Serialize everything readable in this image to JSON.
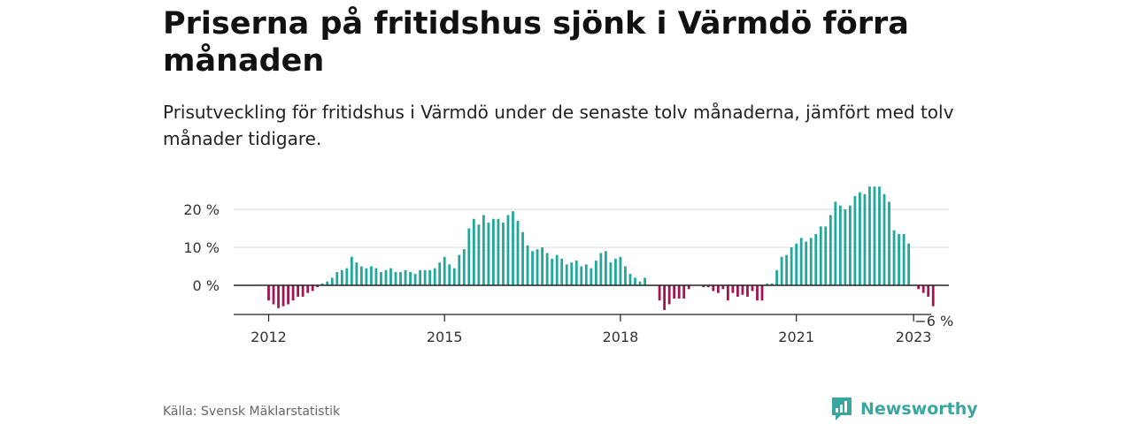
{
  "header": {
    "title": "Priserna på fritidshus sjönk i Värmdö förra månaden",
    "subtitle": "Prisutveckling för fritidshus i Värmdö under de senaste tolv månaderna, jämfört med tolv månader tidigare."
  },
  "footer": {
    "source": "Källa: Svensk Mäklarstatistik",
    "brand": "Newsworthy",
    "brand_icon": "newsworthy-logo-icon"
  },
  "colors": {
    "positive": "#22a89b",
    "negative": "#a3154f",
    "grid": "#d9d9d9",
    "axis": "#222222"
  },
  "chart_data": {
    "type": "bar",
    "x_start": "2012-01",
    "y_unit": "%",
    "ylim": [
      -6,
      26
    ],
    "y_ticks": [
      {
        "value": 0,
        "label": "0 %"
      },
      {
        "value": 10,
        "label": "10 %"
      },
      {
        "value": 20,
        "label": "20 %"
      }
    ],
    "x_ticks": [
      {
        "date": "2012-01",
        "label": "2012"
      },
      {
        "date": "2015-01",
        "label": "2015"
      },
      {
        "date": "2018-01",
        "label": "2018"
      },
      {
        "date": "2021-01",
        "label": "2021"
      },
      {
        "date": "2023-01",
        "label": "2023"
      }
    ],
    "last_label": "−6 %",
    "grid": true,
    "values": [
      -4,
      -5,
      -6,
      -5.5,
      -5,
      -4,
      -3,
      -3,
      -2,
      -1.5,
      -0.5,
      0.5,
      1,
      2,
      3.5,
      4,
      4.5,
      7.5,
      6,
      5,
      4.5,
      5,
      4.5,
      3.5,
      4,
      4.5,
      3.5,
      3.5,
      4,
      3.5,
      3,
      4,
      4,
      4,
      4.5,
      6,
      7.5,
      5.5,
      4.5,
      8,
      9.5,
      15,
      17.5,
      16,
      18.5,
      16.5,
      17.5,
      17.5,
      16.5,
      18.5,
      19.5,
      17,
      14,
      10.5,
      9,
      9.5,
      10,
      8.5,
      7,
      8,
      7,
      5.5,
      6,
      6.5,
      5,
      5.5,
      4.5,
      6.5,
      8.5,
      9,
      6,
      7,
      7.5,
      5,
      3,
      2,
      1,
      2,
      0,
      0,
      -4,
      -6.5,
      -5,
      -3.5,
      -3.5,
      -3.5,
      -1,
      0,
      0,
      -0.5,
      -0.5,
      -1.5,
      -2,
      -1,
      -4,
      -2,
      -3,
      -2.5,
      -3,
      -1.5,
      -4,
      -4,
      0.5,
      0.5,
      4,
      7.5,
      8,
      10,
      11,
      12.5,
      11.5,
      12.5,
      13.5,
      15.5,
      15.5,
      18.5,
      22,
      21,
      20,
      21,
      23.5,
      24.5,
      24,
      26,
      26,
      26,
      24,
      22,
      14.5,
      13.5,
      13.5,
      11,
      0,
      -1,
      -2,
      -3,
      -5.5
    ]
  }
}
